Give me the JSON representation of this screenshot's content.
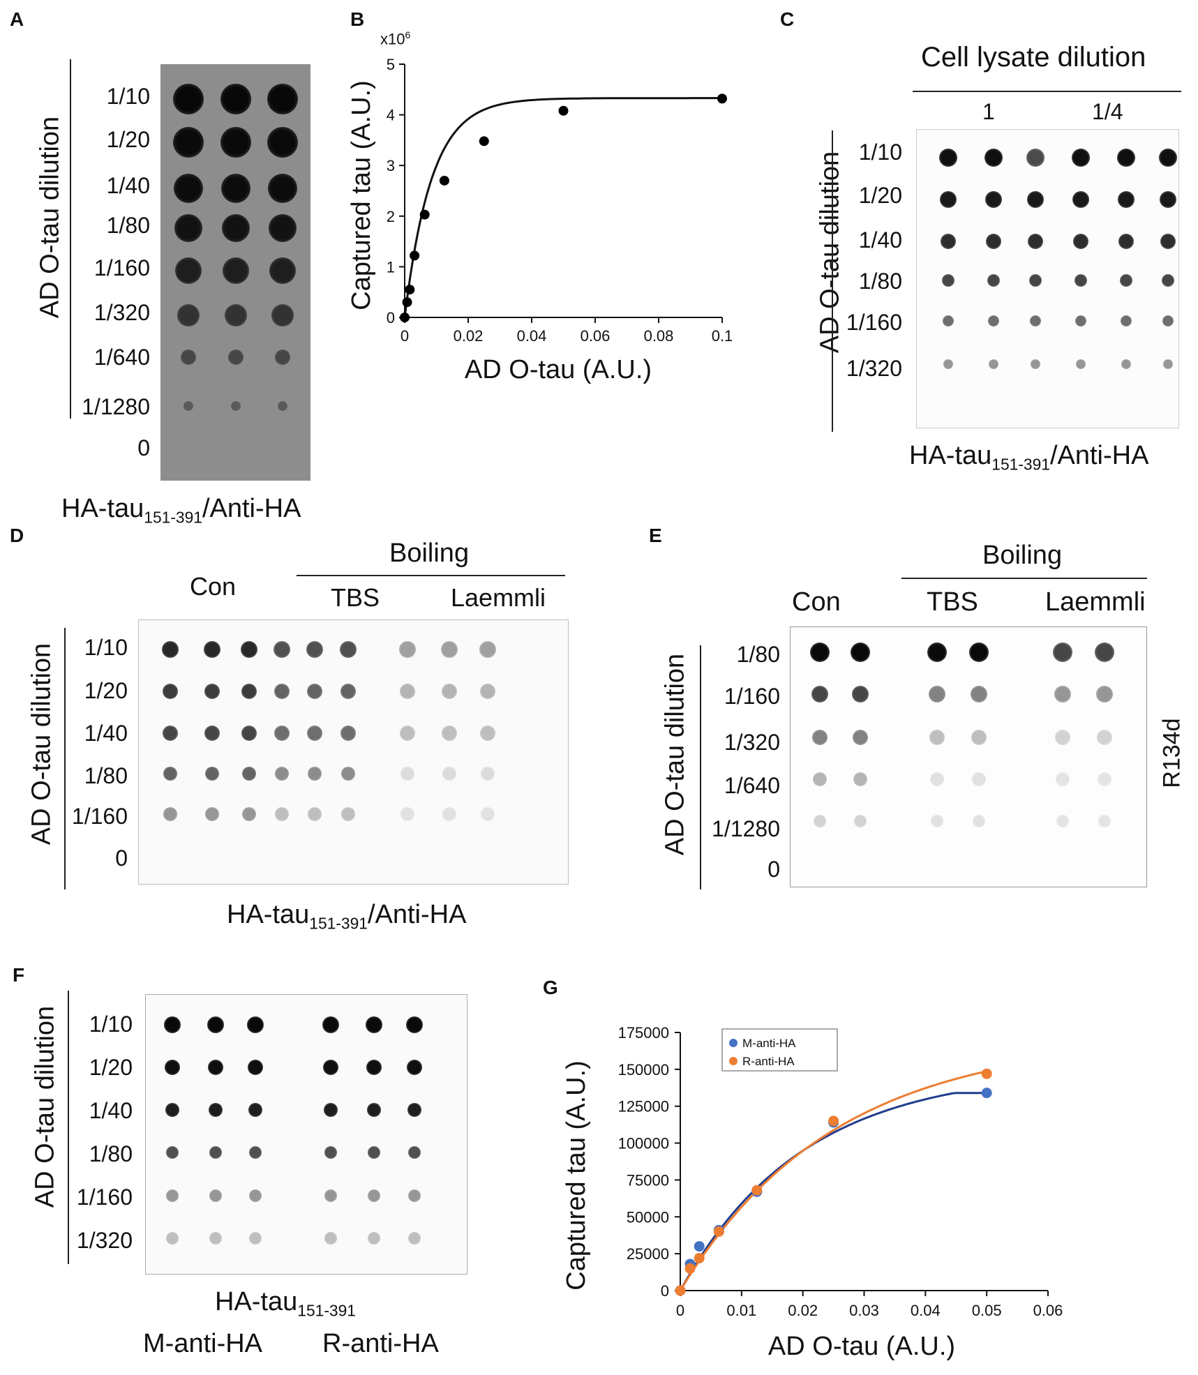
{
  "panels": {
    "A": {
      "letter": "A",
      "axis_title": "AD O-tau dilution",
      "rows": [
        "1/10",
        "1/20",
        "1/40",
        "1/80",
        "1/160",
        "1/320",
        "1/640",
        "1/1280",
        "0"
      ],
      "caption_main": "HA-tau",
      "caption_sub": "151-391",
      "caption_tail": "/Anti-HA"
    },
    "B": {
      "letter": "B",
      "multiplier": "x10",
      "multiplier_exp": "6"
    },
    "C": {
      "letter": "C",
      "header": "Cell lysate dilution",
      "groups": [
        "1",
        "1/4"
      ],
      "axis_title": "AD O-tau dilution",
      "rows": [
        "1/10",
        "1/20",
        "1/40",
        "1/80",
        "1/160",
        "1/320"
      ],
      "caption_main": "HA-tau",
      "caption_sub": "151-391",
      "caption_tail": "/Anti-HA"
    },
    "D": {
      "letter": "D",
      "header": "Boiling",
      "groups": [
        "Con",
        "TBS",
        "Laemmli"
      ],
      "axis_title": "AD O-tau dilution",
      "rows": [
        "1/10",
        "1/20",
        "1/40",
        "1/80",
        "1/160",
        "0"
      ],
      "caption_main": "HA-tau",
      "caption_sub": "151-391",
      "caption_tail": "/Anti-HA"
    },
    "E": {
      "letter": "E",
      "header": "Boiling",
      "groups": [
        "Con",
        "TBS",
        "Laemmli"
      ],
      "axis_title": "AD O-tau dilution",
      "rows": [
        "1/80",
        "1/160",
        "1/320",
        "1/640",
        "1/1280",
        "0"
      ],
      "side_label": "R134d"
    },
    "F": {
      "letter": "F",
      "axis_title": "AD O-tau dilution",
      "rows": [
        "1/10",
        "1/20",
        "1/40",
        "1/80",
        "1/160",
        "1/320"
      ],
      "caption_main": "HA-tau",
      "caption_sub": "151-391",
      "group_labels": [
        "M-anti-HA",
        "R-anti-HA"
      ]
    },
    "G": {
      "letter": "G"
    }
  },
  "chart_data": [
    {
      "id": "B",
      "type": "scatter",
      "title": "",
      "xlabel": "AD O-tau (A.U.)",
      "ylabel": "Captured tau (A.U.)",
      "xlim": [
        0,
        0.1
      ],
      "ylim": [
        0,
        5
      ],
      "xticks": [
        "0",
        "0.02",
        "0.04",
        "0.06",
        "0.08",
        "0.1"
      ],
      "yticks": [
        "0",
        "1",
        "2",
        "3",
        "4",
        "5"
      ],
      "grid": false,
      "series": [
        {
          "x": [
            0,
            0.00078,
            0.0016,
            0.0031,
            0.0063,
            0.0125,
            0.025,
            0.05,
            0.1
          ],
          "y": [
            0,
            0.3,
            0.55,
            1.22,
            2.03,
            2.7,
            3.48,
            4.08,
            4.32
          ],
          "color": "#000000"
        }
      ]
    },
    {
      "id": "G",
      "type": "scatter",
      "title": "",
      "xlabel": "AD O-tau (A.U.)",
      "ylabel": "Captured tau (A.U.)",
      "xlim": [
        0,
        0.06
      ],
      "ylim": [
        0,
        175000
      ],
      "xticks": [
        "0",
        "0.01",
        "0.02",
        "0.03",
        "0.04",
        "0.05",
        "0.06"
      ],
      "yticks": [
        "0",
        "25000",
        "50000",
        "75000",
        "100000",
        "125000",
        "150000",
        "175000"
      ],
      "grid": false,
      "legend": "top-left",
      "series": [
        {
          "name": "M-anti-HA",
          "color": "#4472C4",
          "line_color": "#1F3D8C",
          "x": [
            0,
            0.0016,
            0.0031,
            0.0063,
            0.0125,
            0.025,
            0.05
          ],
          "y": [
            0,
            18000,
            30000,
            41000,
            67000,
            114000,
            134000
          ]
        },
        {
          "name": "R-anti-HA",
          "color": "#ED7D31",
          "line_color": "#ED7D31",
          "x": [
            0,
            0.0016,
            0.0031,
            0.0063,
            0.0125,
            0.025,
            0.05
          ],
          "y": [
            0,
            15000,
            22000,
            40000,
            68000,
            115000,
            147000
          ]
        }
      ]
    }
  ]
}
